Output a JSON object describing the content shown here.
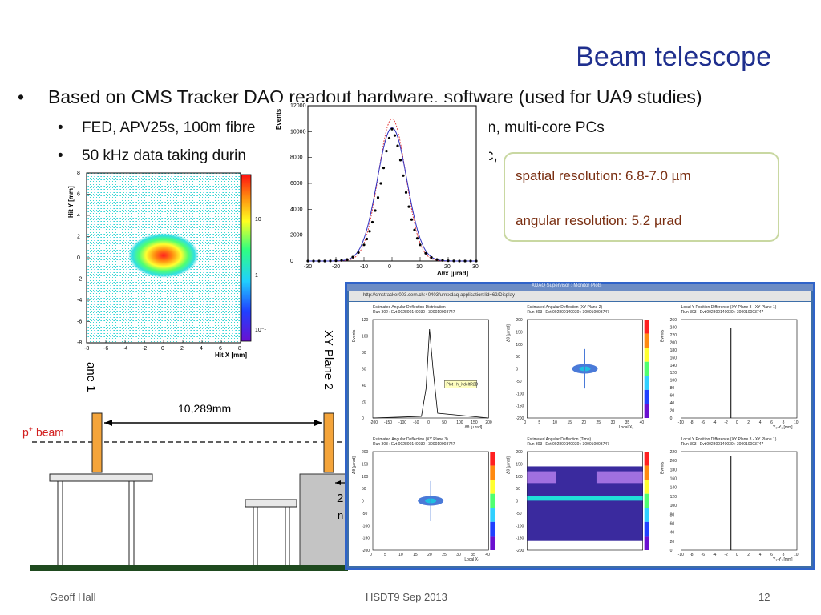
{
  "slide": {
    "title": "Beam telescope",
    "bullets": [
      "Based on CMS Tracker DAQ readout hardware, software (used for UA9 studies)"
    ],
    "sub_bullets": [
      "FED, APV25s, 100m fibre",
      "n, multi-core PCs",
      "50 kHz data taking durin",
      "c,"
    ],
    "resolution_box": {
      "spatial": "spatial resolution:  6.8-7.0 µm",
      "angular": "angular resolution: 5.2 µrad"
    },
    "footer": {
      "author": "Geoff Hall",
      "event": "HSDT9 Sep 2013",
      "page": "12"
    }
  },
  "setup": {
    "distance_label": "10,289mm",
    "beam_label_main": "p",
    "beam_label_sup": "+",
    "beam_label_rest": " beam",
    "plane1_label": "ane 1",
    "plane2_label": "XY Plane 2",
    "partial_label_a": "2",
    "partial_label_b": "n"
  },
  "hitmap": {
    "ylabel": "Hit Y [mm]",
    "xlabel": "Hit X [mm]",
    "xticks": [
      "-8",
      "-6",
      "-4",
      "-2",
      "0",
      "2",
      "4",
      "6",
      "8"
    ],
    "yticks": [
      "8",
      "6",
      "4",
      "2",
      "0",
      "-2",
      "-4",
      "-6",
      "-8"
    ],
    "colorbar_ticks": [
      "10",
      "1",
      "10⁻¹"
    ]
  },
  "chart_data": [
    {
      "type": "scatter",
      "title": "",
      "xlabel": "Δθx [µrad]",
      "ylabel": "Events",
      "xlim": [
        -30,
        30
      ],
      "ylim": [
        0,
        12000
      ],
      "xticks": [
        -30,
        -20,
        -10,
        0,
        10,
        20,
        30
      ],
      "yticks": [
        0,
        2000,
        4000,
        6000,
        8000,
        10000,
        12000
      ],
      "x": [
        -30,
        -28,
        -26,
        -24,
        -22,
        -20,
        -18,
        -16,
        -14,
        -12,
        -10,
        -9,
        -8,
        -7,
        -6,
        -5,
        -4,
        -3,
        -2,
        -1,
        0,
        1,
        2,
        3,
        4,
        5,
        6,
        7,
        8,
        9,
        10,
        12,
        14,
        16,
        18,
        20,
        22,
        24,
        26,
        28,
        30
      ],
      "values": [
        0,
        0,
        0,
        0,
        10,
        20,
        50,
        120,
        300,
        650,
        1250,
        1700,
        2300,
        3000,
        3900,
        4900,
        6000,
        7200,
        8500,
        9500,
        10200,
        9700,
        8900,
        7800,
        6600,
        5300,
        4200,
        3200,
        2400,
        1750,
        1250,
        600,
        280,
        120,
        50,
        20,
        10,
        0,
        0,
        0,
        0
      ]
    }
  ],
  "daq_window": {
    "url": "http://cmstracker003.cern.ch:40403/urn:xdaq-application:lid=62/Display",
    "title": "XDAQ Supervisor : Monitor Plots",
    "tooltip": "Plot : h_XdeltR2D",
    "panels": [
      {
        "title": "Estimated Angular Deflection Distribution",
        "run": "Run 302 : Evt 002800140030 : 300010003747",
        "xlabel": "Δθ [µ rad]",
        "ylabel": "Events",
        "yticks": [
          "120",
          "100",
          "80",
          "60",
          "40",
          "20",
          "0"
        ],
        "xticks": [
          "-200",
          "-150",
          "-100",
          "-50",
          "0",
          "50",
          "100",
          "150",
          "200"
        ]
      },
      {
        "title": "Estimated Angular Deflection (XY Plane 2)",
        "run": "Run 303 : Evt 002800140030 : 300010003747",
        "xlabel": "Local X₂",
        "ylabel": "Δθ [µ rad]",
        "yticks": [
          "200",
          "150",
          "100",
          "50",
          "0",
          "-50",
          "-100",
          "-150",
          "-200"
        ],
        "xticks": [
          "0",
          "5",
          "10",
          "15",
          "20",
          "25",
          "30",
          "35",
          "40"
        ]
      },
      {
        "title": "Local Y Position Difference (XY Plane 3 - XY Plane 1)",
        "run": "Run 303 : Evt 002800140030 : 300010003747",
        "xlabel": "Y₃-Y₁ [mm]",
        "ylabel": "Events",
        "yticks": [
          "260",
          "240",
          "220",
          "200",
          "180",
          "160",
          "140",
          "120",
          "100",
          "80",
          "60",
          "40",
          "20",
          "0"
        ],
        "xticks": [
          "-10",
          "-8",
          "-6",
          "-4",
          "-2",
          "0",
          "2",
          "4",
          "6",
          "8",
          "10"
        ]
      },
      {
        "title": "Estimated Angular Deflection (XY Plane 3)",
        "run": "Run 303 : Evt 002800140030 : 300010003747",
        "xlabel": "Local X₃",
        "ylabel": "Δθ [µ rad]",
        "yticks": [
          "200",
          "150",
          "100",
          "50",
          "0",
          "-50",
          "-100",
          "-150",
          "-200"
        ],
        "xticks": [
          "0",
          "5",
          "10",
          "15",
          "20",
          "25",
          "30",
          "35",
          "40"
        ]
      },
      {
        "title": "Estimated Angular Deflection (Time)",
        "run": "Run 303 : Evt 002800140030 : 300010003747",
        "xlabel": "",
        "ylabel": "Δθ [µ rad]",
        "yticks": [
          "200",
          "150",
          "100",
          "50",
          "0",
          "-50",
          "-100",
          "-150",
          "-200"
        ],
        "xticks": []
      },
      {
        "title": "Local Y Position Difference (XY Plane 3 - XY Plane 1)",
        "run": "Run 303 : Evt 002800140030 : 300010003747",
        "xlabel": "Y₃-Y₁ [mm]",
        "ylabel": "Events",
        "yticks": [
          "220",
          "200",
          "180",
          "160",
          "140",
          "120",
          "100",
          "80",
          "60",
          "40",
          "20",
          "0"
        ],
        "xticks": [
          "-10",
          "-8",
          "-6",
          "-4",
          "-2",
          "0",
          "2",
          "4",
          "6",
          "8",
          "10"
        ]
      }
    ]
  },
  "colors": {
    "title": "#1f2f8e",
    "beam_label": "#d21f1f",
    "plane": "#f4a43a",
    "box_border": "#c9d8a2",
    "box_text": "#7a2f12"
  }
}
